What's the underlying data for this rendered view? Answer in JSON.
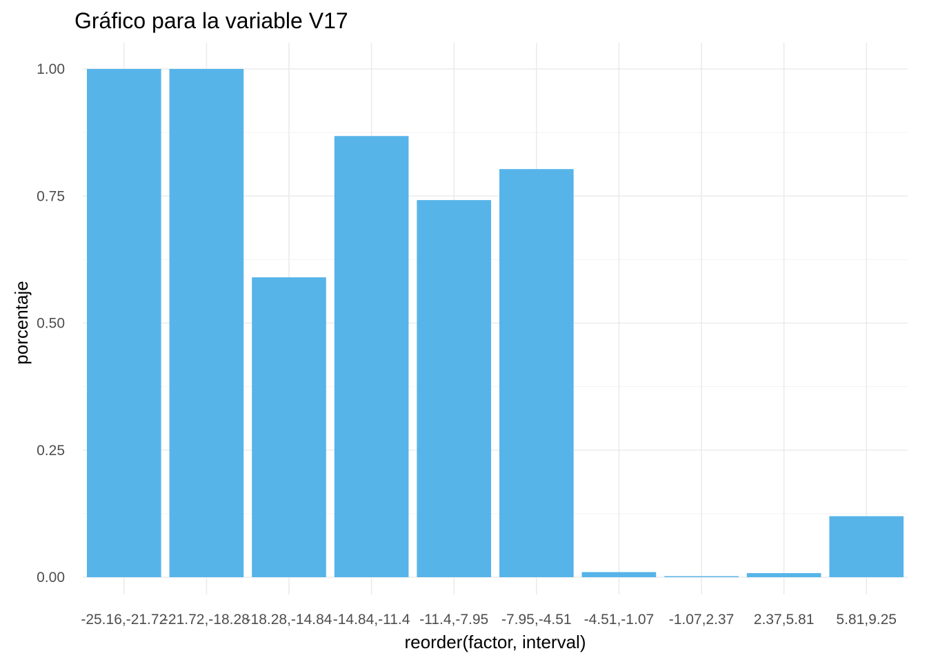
{
  "chart_data": {
    "type": "bar",
    "title": "Gráfico para la variable  V17",
    "xlabel": "reorder(factor, interval)",
    "ylabel": "porcentaje",
    "categories": [
      "-25.16,-21.72",
      "-21.72,-18.28",
      "-18.28,-14.84",
      "-14.84,-11.4",
      "-11.4,-7.95",
      "-7.95,-4.51",
      "-4.51,-1.07",
      "-1.07,2.37",
      "2.37,5.81",
      "5.81,9.25"
    ],
    "values": [
      1.0,
      1.0,
      0.59,
      0.868,
      0.742,
      0.803,
      0.01,
      0.002,
      0.008,
      0.12
    ],
    "ylim": [
      0,
      1.0
    ],
    "yticks": [
      0,
      0.25,
      0.5,
      0.75,
      1.0
    ],
    "ytick_labels": [
      "0.00",
      "0.25",
      "0.50",
      "0.75",
      "1.00"
    ],
    "bar_color": "#56b4e9",
    "grid": true,
    "legend": "none"
  }
}
